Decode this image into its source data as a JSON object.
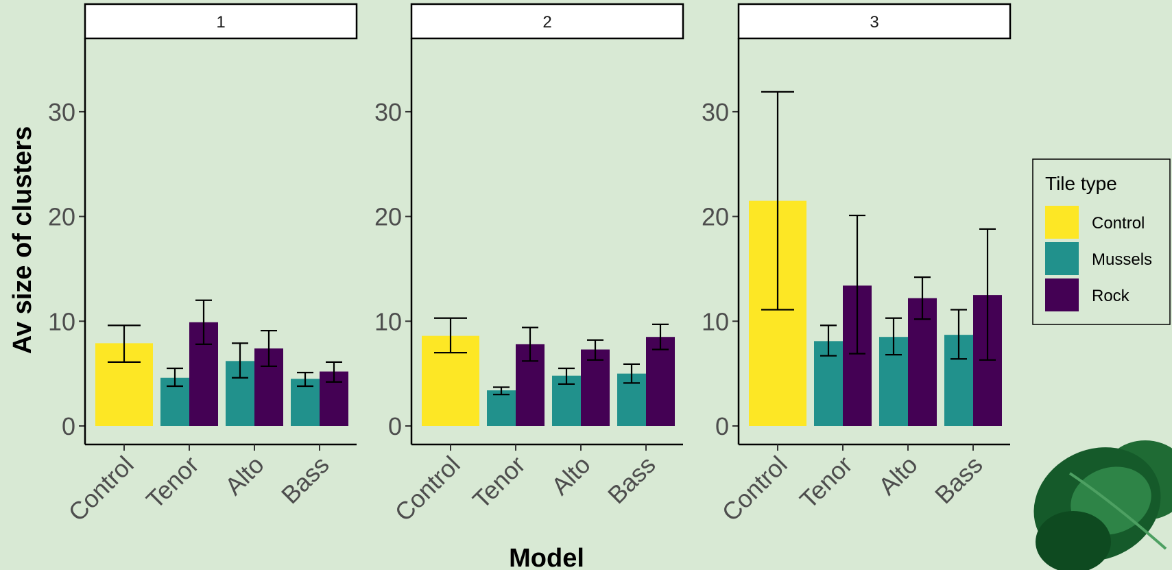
{
  "chart_data": {
    "type": "bar",
    "subtype": "faceted-grouped-bar-with-error-bars",
    "xlabel": "Model",
    "ylabel": "Av size of clusters",
    "ylim": [
      0,
      37
    ],
    "yticks": [
      0,
      10,
      20,
      30
    ],
    "categories": [
      "Control",
      "Tenor",
      "Alto",
      "Bass"
    ],
    "legend": {
      "title": "Tile type",
      "position": "right",
      "entries": [
        {
          "name": "Control",
          "color": "#fde725"
        },
        {
          "name": "Mussels",
          "color": "#21918c"
        },
        {
          "name": "Rock",
          "color": "#440154"
        }
      ]
    },
    "facets": [
      {
        "label": "1",
        "bars": [
          {
            "category": "Control",
            "series": "Control",
            "value": 7.9,
            "err_low": 6.1,
            "err_high": 9.6
          },
          {
            "category": "Tenor",
            "series": "Mussels",
            "value": 4.6,
            "err_low": 3.8,
            "err_high": 5.5
          },
          {
            "category": "Tenor",
            "series": "Rock",
            "value": 9.9,
            "err_low": 7.8,
            "err_high": 12.0
          },
          {
            "category": "Alto",
            "series": "Mussels",
            "value": 6.2,
            "err_low": 4.6,
            "err_high": 7.9
          },
          {
            "category": "Alto",
            "series": "Rock",
            "value": 7.4,
            "err_low": 5.7,
            "err_high": 9.1
          },
          {
            "category": "Bass",
            "series": "Mussels",
            "value": 4.5,
            "err_low": 3.8,
            "err_high": 5.1
          },
          {
            "category": "Bass",
            "series": "Rock",
            "value": 5.2,
            "err_low": 4.2,
            "err_high": 6.1
          }
        ]
      },
      {
        "label": "2",
        "bars": [
          {
            "category": "Control",
            "series": "Control",
            "value": 8.6,
            "err_low": 7.0,
            "err_high": 10.3
          },
          {
            "category": "Tenor",
            "series": "Mussels",
            "value": 3.4,
            "err_low": 3.0,
            "err_high": 3.7
          },
          {
            "category": "Tenor",
            "series": "Rock",
            "value": 7.8,
            "err_low": 6.2,
            "err_high": 9.4
          },
          {
            "category": "Alto",
            "series": "Mussels",
            "value": 4.8,
            "err_low": 4.0,
            "err_high": 5.5
          },
          {
            "category": "Alto",
            "series": "Rock",
            "value": 7.3,
            "err_low": 6.3,
            "err_high": 8.2
          },
          {
            "category": "Bass",
            "series": "Mussels",
            "value": 5.0,
            "err_low": 4.1,
            "err_high": 5.9
          },
          {
            "category": "Bass",
            "series": "Rock",
            "value": 8.5,
            "err_low": 7.3,
            "err_high": 9.7
          }
        ]
      },
      {
        "label": "3",
        "bars": [
          {
            "category": "Control",
            "series": "Control",
            "value": 21.5,
            "err_low": 11.1,
            "err_high": 31.9
          },
          {
            "category": "Tenor",
            "series": "Mussels",
            "value": 8.1,
            "err_low": 6.7,
            "err_high": 9.6
          },
          {
            "category": "Tenor",
            "series": "Rock",
            "value": 13.4,
            "err_low": 6.9,
            "err_high": 20.1
          },
          {
            "category": "Alto",
            "series": "Mussels",
            "value": 8.5,
            "err_low": 6.8,
            "err_high": 10.3
          },
          {
            "category": "Alto",
            "series": "Rock",
            "value": 12.2,
            "err_low": 10.2,
            "err_high": 14.2
          },
          {
            "category": "Bass",
            "series": "Mussels",
            "value": 8.7,
            "err_low": 6.4,
            "err_high": 11.1
          },
          {
            "category": "Bass",
            "series": "Rock",
            "value": 12.5,
            "err_low": 6.3,
            "err_high": 18.8
          }
        ]
      }
    ],
    "decoration": "leaf-illustration-bottom-right"
  }
}
